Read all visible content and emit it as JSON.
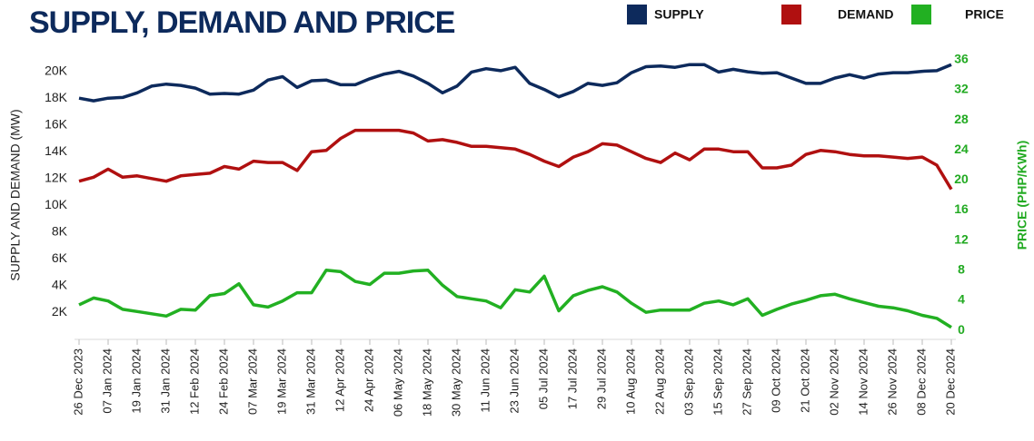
{
  "chart_data": {
    "type": "line",
    "title": "SUPPLY, DEMAND AND PRICE",
    "y_label": "SUPPLY AND DEMAND (MW)",
    "y2_label": "PRICE (PHP/KWh)",
    "categories": [
      "26 Dec 2023",
      null,
      "07 Jan 2024",
      null,
      "19 Jan 2024",
      null,
      "31 Jan 2024",
      null,
      "12 Feb 2024",
      null,
      "24 Feb 2024",
      null,
      "07 Mar 2024",
      null,
      "19 Mar 2024",
      null,
      "31 Mar 2024",
      null,
      "12 Apr 2024",
      null,
      "24 Apr 2024",
      null,
      "06 May 2024",
      null,
      "18 May 2024",
      null,
      "30 May 2024",
      null,
      "11 Jun 2024",
      null,
      "23 Jun 2024",
      null,
      "05 Jul 2024",
      null,
      "17 Jul 2024",
      null,
      "29 Jul 2024",
      null,
      "10 Aug 2024",
      null,
      "22 Aug 2024",
      null,
      "03 Sep 2024",
      null,
      "15 Sep 2024",
      null,
      "27 Sep 2024",
      null,
      "09 Oct 2024",
      null,
      "21 Oct 2024",
      null,
      "02 Nov 2024",
      null,
      "14 Nov 2024",
      null,
      "26 Nov 2024",
      null,
      "08 Dec 2024",
      null,
      "20 Dec 2024"
    ],
    "series": [
      {
        "name": "SUPPLY",
        "color": "#0d2a5c",
        "axis": "y",
        "values": [
          18000,
          17800,
          18000,
          18050,
          18400,
          18900,
          19050,
          18950,
          18750,
          18300,
          18350,
          18300,
          18600,
          19350,
          19600,
          18800,
          19300,
          19350,
          19000,
          19000,
          19450,
          19800,
          20000,
          19650,
          19100,
          18400,
          18900,
          19950,
          20200,
          20050,
          20300,
          19100,
          18650,
          18100,
          18500,
          19100,
          18950,
          19150,
          19900,
          20350,
          20400,
          20300,
          20500,
          20500,
          19950,
          20150,
          19970,
          19850,
          19900,
          19500,
          19100,
          19100,
          19500,
          19750,
          19500,
          19800,
          19900,
          19900,
          20000,
          20050,
          20500
        ]
      },
      {
        "name": "DEMAND",
        "color": "#b01010",
        "axis": "y",
        "values": [
          11800,
          12100,
          12700,
          12100,
          12200,
          12000,
          11800,
          12200,
          12300,
          12400,
          12900,
          12700,
          13300,
          13200,
          13200,
          12600,
          14000,
          14100,
          15000,
          15600,
          15600,
          15600,
          15600,
          15400,
          14800,
          14900,
          14700,
          14400,
          14400,
          14300,
          14200,
          13800,
          13300,
          12900,
          13600,
          14000,
          14600,
          14500,
          14000,
          13500,
          13200,
          13900,
          13400,
          14200,
          14200,
          14000,
          14000,
          12800,
          12800,
          13000,
          13800,
          14100,
          14000,
          13800,
          13700,
          13700,
          13600,
          13500,
          13600,
          13000,
          11200
        ]
      },
      {
        "name": "PRICE",
        "color": "#22b022",
        "axis": "y2",
        "values": [
          3.4,
          4.3,
          3.9,
          2.8,
          2.5,
          2.2,
          1.9,
          2.8,
          2.7,
          4.6,
          4.9,
          6.2,
          3.4,
          3.1,
          3.9,
          5.0,
          5.0,
          8.0,
          7.8,
          6.5,
          6.1,
          7.6,
          7.6,
          7.9,
          8.0,
          6.0,
          4.5,
          4.2,
          3.9,
          3.0,
          5.4,
          5.1,
          7.2,
          2.6,
          4.6,
          5.3,
          5.8,
          5.1,
          3.6,
          2.4,
          2.7,
          2.7,
          2.7,
          3.6,
          3.9,
          3.4,
          4.2,
          2.0,
          2.8,
          3.5,
          4.0,
          4.6,
          4.8,
          4.2,
          3.7,
          3.2,
          3.0,
          2.6,
          2.0,
          1.6,
          0.4
        ]
      }
    ],
    "ylim": [
      0,
      21600
    ],
    "yticks": [
      {
        "value": 2000,
        "label": "2K"
      },
      {
        "value": 4000,
        "label": "4K"
      },
      {
        "value": 6000,
        "label": "6K"
      },
      {
        "value": 8000,
        "label": "8K"
      },
      {
        "value": 10000,
        "label": "10K"
      },
      {
        "value": 12000,
        "label": "12K"
      },
      {
        "value": 14000,
        "label": "14K"
      },
      {
        "value": 16000,
        "label": "16K"
      },
      {
        "value": 18000,
        "label": "18K"
      },
      {
        "value": 20000,
        "label": "20K"
      }
    ],
    "y2lim": [
      -1.2,
      37.3
    ],
    "y2ticks": [
      0,
      4,
      8,
      12,
      16,
      20,
      24,
      28,
      32,
      36
    ],
    "legend": "top-right",
    "grid": false
  }
}
